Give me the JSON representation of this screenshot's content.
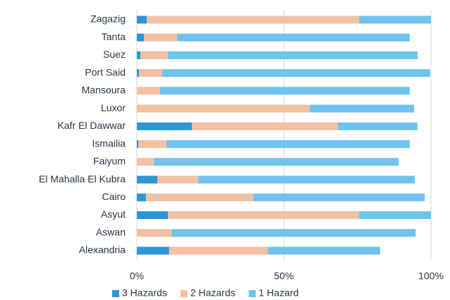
{
  "chart_data": {
    "type": "stacked_barh",
    "categories": [
      "Zagazig",
      "Tanta",
      "Suez",
      "Port Said",
      "Mansoura",
      "Luxor",
      "Kafr El Dawwar",
      "Ismailia",
      "Faiyum",
      "El Mahalla El Kubra",
      "Cairo",
      "Asyut",
      "Aswan",
      "Alexandria"
    ],
    "series": [
      {
        "name": "3 Hazards",
        "color": "#2e96d6",
        "values": [
          3.4,
          2.4,
          1.2,
          0.7,
          0,
          0,
          18.7,
          0.5,
          0,
          7.0,
          3.1,
          10.6,
          0,
          11.0
        ]
      },
      {
        "name": "2 Hazards",
        "color": "#f2c0a3",
        "values": [
          72.2,
          11.3,
          9.4,
          7.9,
          7.9,
          58.8,
          49.6,
          9.6,
          5.8,
          13.9,
          36.5,
          65.0,
          11.8,
          33.6
        ]
      },
      {
        "name": "1 Hazard",
        "color": "#6fc3ee",
        "values": [
          24.4,
          79.1,
          84.9,
          91.1,
          84.9,
          35.5,
          27.1,
          82.7,
          83.2,
          73.6,
          58.3,
          24.4,
          83.0,
          38.1
        ]
      }
    ],
    "xlim": [
      0,
      100
    ],
    "xticks": [
      {
        "value": 0,
        "label": "0%"
      },
      {
        "value": 50,
        "label": "50%"
      },
      {
        "value": 100,
        "label": "100%"
      }
    ],
    "grid": true,
    "legend": "bottom"
  }
}
